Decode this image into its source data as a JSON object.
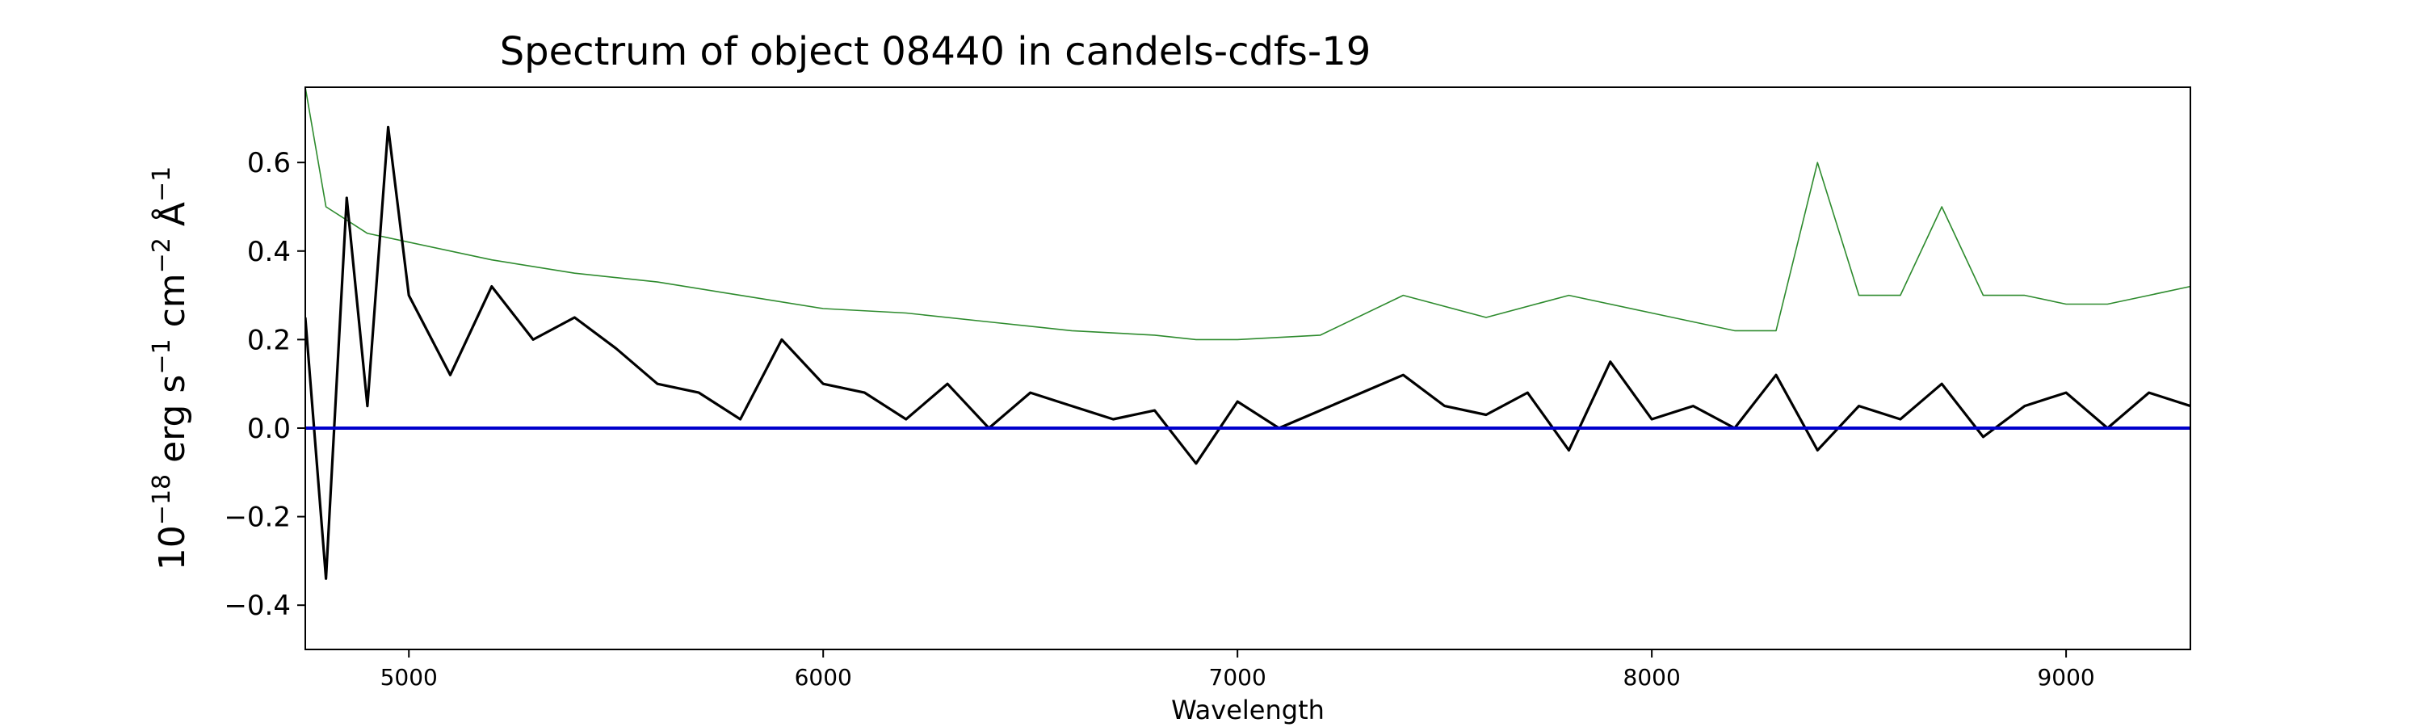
{
  "chart_data": {
    "type": "line",
    "title": "Spectrum of object 08440 in candels-cdfs-19",
    "xlabel": "Wavelength",
    "ylabel_parts": {
      "base": "10",
      "exp1": "−18",
      "mid1": " erg s",
      "exp2": "−1",
      "mid2": " cm",
      "exp3": "−2",
      "mid3": " Å",
      "exp4": "−1"
    },
    "xlim": [
      4750,
      9300
    ],
    "ylim": [
      -0.5,
      0.77
    ],
    "x_ticks": [
      5000,
      6000,
      7000,
      8000,
      9000
    ],
    "x_tick_labels": [
      "5000",
      "6000",
      "7000",
      "8000",
      "9000"
    ],
    "y_ticks": [
      -0.4,
      -0.2,
      0.0,
      0.2,
      0.4,
      0.6
    ],
    "y_tick_labels": [
      "−0.4",
      "−0.2",
      "0.0",
      "0.2",
      "0.4",
      "0.6"
    ],
    "grid": false,
    "colors": {
      "flux": "#000000",
      "error": "#2e8b2e",
      "zero": "#0000cc"
    },
    "series": [
      {
        "key": "flux",
        "x": [
          4750,
          4800,
          4850,
          4900,
          4950,
          5000,
          5100,
          5200,
          5300,
          5400,
          5500,
          5600,
          5700,
          5800,
          5900,
          6000,
          6100,
          6200,
          6300,
          6400,
          6500,
          6600,
          6700,
          6800,
          6900,
          7000,
          7100,
          7200,
          7300,
          7400,
          7500,
          7600,
          7700,
          7800,
          7900,
          8000,
          8100,
          8200,
          8300,
          8400,
          8500,
          8600,
          8700,
          8800,
          8900,
          9000,
          9100,
          9200,
          9300
        ],
        "y": [
          0.25,
          -0.34,
          0.52,
          0.05,
          0.68,
          0.3,
          0.12,
          0.32,
          0.2,
          0.25,
          0.18,
          0.1,
          0.08,
          0.02,
          0.2,
          0.1,
          0.08,
          0.02,
          0.1,
          0.0,
          0.08,
          0.05,
          0.02,
          0.04,
          -0.08,
          0.06,
          0.0,
          0.04,
          0.08,
          0.12,
          0.05,
          0.03,
          0.08,
          -0.05,
          0.15,
          0.02,
          0.05,
          0.0,
          0.12,
          -0.05,
          0.05,
          0.02,
          0.1,
          -0.02,
          0.05,
          0.08,
          0.0,
          0.08,
          0.05
        ]
      },
      {
        "key": "error",
        "x": [
          4750,
          4800,
          4850,
          4900,
          5000,
          5200,
          5400,
          5600,
          5800,
          6000,
          6200,
          6400,
          6600,
          6800,
          6900,
          7000,
          7200,
          7400,
          7600,
          7800,
          8000,
          8200,
          8300,
          8400,
          8500,
          8600,
          8700,
          8800,
          8900,
          9000,
          9100,
          9200,
          9300
        ],
        "y": [
          0.77,
          0.5,
          0.47,
          0.44,
          0.42,
          0.38,
          0.35,
          0.33,
          0.3,
          0.27,
          0.26,
          0.24,
          0.22,
          0.21,
          0.2,
          0.2,
          0.21,
          0.3,
          0.25,
          0.3,
          0.26,
          0.22,
          0.22,
          0.6,
          0.3,
          0.3,
          0.5,
          0.3,
          0.3,
          0.28,
          0.28,
          0.3,
          0.32
        ]
      },
      {
        "key": "zero",
        "x": [
          4750,
          9300
        ],
        "y": [
          0.0,
          0.0
        ]
      }
    ]
  }
}
